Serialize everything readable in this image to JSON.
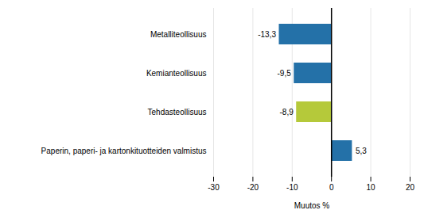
{
  "chart_data": {
    "type": "bar",
    "orientation": "horizontal",
    "categories": [
      "Metalliteollisuus",
      "Kemianteollisuus",
      "Tehdasteollisuus",
      "Paperin, paperi- ja kartonkituotteiden valmistus"
    ],
    "values": [
      -13.3,
      -9.5,
      -8.9,
      5.3
    ],
    "value_labels": [
      "-13,3",
      "-9,5",
      "-8,9",
      "5,3"
    ],
    "data_labels": true,
    "colors": [
      "#2471a8",
      "#2471a8",
      "#b5c93a",
      "#2471a8"
    ],
    "xlabel": "Muutos %",
    "xlim": [
      -30,
      20
    ],
    "xticks": [
      -30,
      -20,
      -10,
      0,
      10,
      20
    ],
    "grid": true
  }
}
